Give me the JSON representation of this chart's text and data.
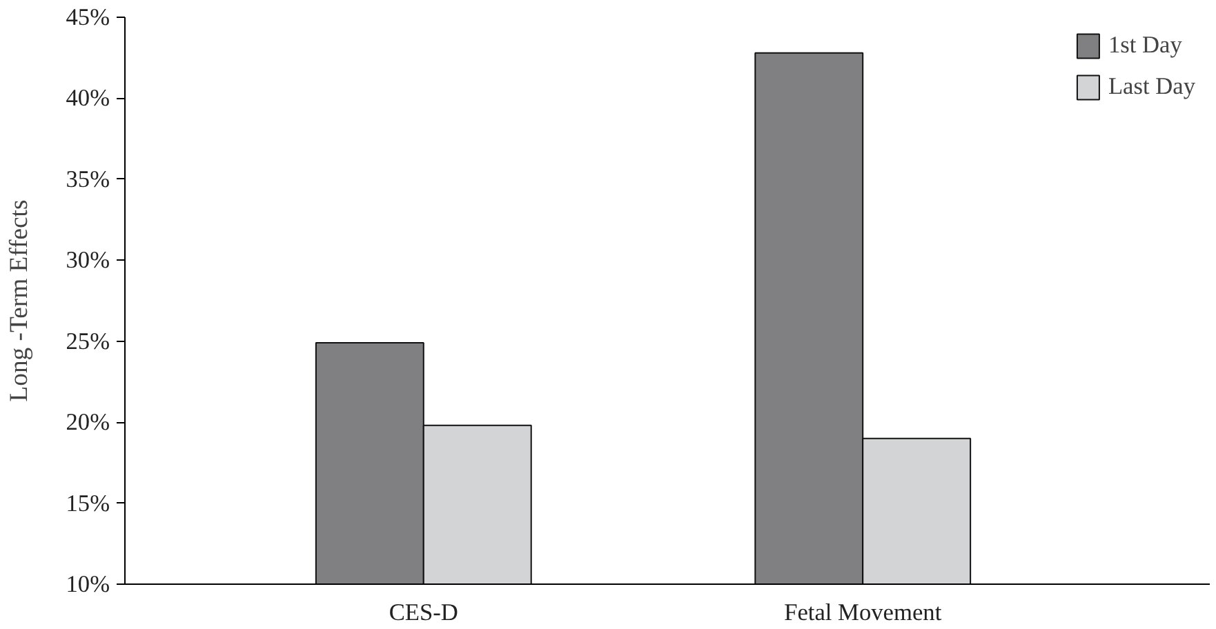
{
  "chart_data": {
    "type": "bar",
    "ylabel": "Long -Term Effects",
    "categories": [
      "CES-D",
      "Fetal Movement"
    ],
    "series": [
      {
        "name": "1st Day",
        "color": "#808083",
        "values": [
          24.9,
          42.8
        ]
      },
      {
        "name": "Last Day",
        "color": "#d3d4d6",
        "values": [
          19.8,
          19.0
        ]
      }
    ],
    "ylim": [
      10,
      45
    ],
    "yticks": [
      {
        "value": 10,
        "label": "10%"
      },
      {
        "value": 15,
        "label": "15%"
      },
      {
        "value": 20,
        "label": "20%"
      },
      {
        "value": 25,
        "label": "25%"
      },
      {
        "value": 30,
        "label": "30%"
      },
      {
        "value": 35,
        "label": "35%"
      },
      {
        "value": 40,
        "label": "40%"
      },
      {
        "value": 45,
        "label": "45%"
      }
    ],
    "grid": false,
    "legend": "top right"
  }
}
